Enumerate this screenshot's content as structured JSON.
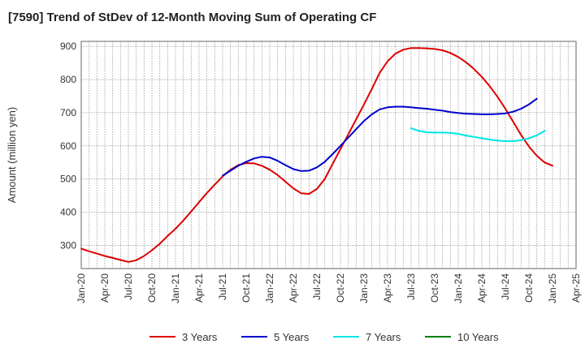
{
  "chart_data": {
    "type": "line",
    "title": "[7590]  Trend of StDev of 12-Month Moving Sum of Operating CF",
    "ylabel": "Amount (million yen)",
    "xlabel": "",
    "ylim": [
      230,
      915
    ],
    "yticks": [
      300,
      400,
      500,
      600,
      700,
      800,
      900
    ],
    "xticks": [
      "Jan-20",
      "Apr-20",
      "Jul-20",
      "Oct-20",
      "Jan-21",
      "Apr-21",
      "Jul-21",
      "Oct-21",
      "Jan-22",
      "Apr-22",
      "Jul-22",
      "Oct-22",
      "Jan-23",
      "Apr-23",
      "Jul-23",
      "Oct-23",
      "Jan-24",
      "Apr-24",
      "Jul-24",
      "Oct-24",
      "Jan-25",
      "Apr-25"
    ],
    "grid": true,
    "legend_position": "bottom",
    "series": [
      {
        "name": "3 Years",
        "color": "#dd0000",
        "start_index": 0,
        "values": [
          290,
          282,
          275,
          268,
          262,
          256,
          250,
          255,
          268,
          285,
          305,
          328,
          350,
          375,
          402,
          430,
          458,
          483,
          508,
          528,
          542,
          548,
          547,
          540,
          528,
          512,
          492,
          472,
          457,
          455,
          470,
          500,
          545,
          590,
          635,
          680,
          725,
          772,
          820,
          855,
          878,
          890,
          895,
          895,
          894,
          892,
          888,
          880,
          868,
          852,
          832,
          808,
          780,
          748,
          712,
          672,
          633,
          598,
          570,
          550,
          540
        ]
      },
      {
        "name": "5 Years",
        "color": "#0000cc",
        "start_index": 18,
        "values": [
          510,
          525,
          540,
          552,
          562,
          567,
          565,
          555,
          542,
          530,
          524,
          525,
          535,
          552,
          575,
          600,
          625,
          650,
          675,
          695,
          710,
          716,
          718,
          718,
          716,
          714,
          712,
          709,
          706,
          702,
          699,
          697,
          696,
          695,
          695,
          696,
          698,
          703,
          712,
          725,
          742
        ]
      },
      {
        "name": "7 Years",
        "color": "#00e5e5",
        "start_index": 42,
        "values": [
          653,
          645,
          641,
          640,
          640,
          639,
          636,
          631,
          627,
          623,
          619,
          616,
          614,
          614,
          617,
          623,
          632,
          645
        ]
      },
      {
        "name": "10 Years",
        "color": "#008000",
        "start_index": 0,
        "values": []
      }
    ]
  }
}
